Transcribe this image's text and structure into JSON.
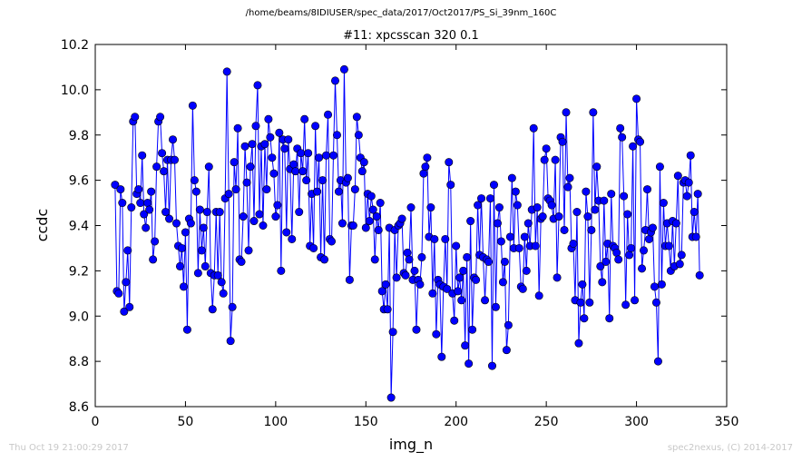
{
  "header": {
    "suptitle": "/home/beams/8IDIUSER/spec_data/2017/Oct2017/PS_Si_39nm_160C"
  },
  "footer": {
    "timestamp": "Thu Oct 19 21:00:29 2017",
    "credit": "spec2nexus, (C) 2014-2017"
  },
  "chart_data": {
    "type": "line",
    "title": "#11: xpcsscan 320 0.1",
    "xlabel": "img_n",
    "ylabel": "ccdc",
    "xlim": [
      0,
      350
    ],
    "ylim": [
      8.6,
      10.2
    ],
    "xticks": [
      "0",
      "50",
      "100",
      "150",
      "200",
      "250",
      "300",
      "350"
    ],
    "yticks": [
      "8.6",
      "8.8",
      "9.0",
      "9.2",
      "9.4",
      "9.6",
      "9.8",
      "10.0",
      "10.2"
    ],
    "grid": false,
    "legend": "none",
    "series_color": "#0000ff",
    "series": [
      {
        "x_start": 11,
        "x_step": 1,
        "values": [
          9.58,
          9.11,
          9.1,
          9.56,
          9.5,
          9.02,
          9.15,
          9.29,
          9.04,
          9.48,
          9.86,
          9.88,
          9.54,
          9.56,
          9.5,
          9.71,
          9.45,
          9.39,
          9.5,
          9.47,
          9.55,
          9.25,
          9.33,
          9.66,
          9.86,
          9.88,
          9.72,
          9.64,
          9.46,
          9.69,
          9.43,
          9.69,
          9.78,
          9.69,
          9.41,
          9.31,
          9.22,
          9.3,
          9.13,
          9.37,
          8.94,
          9.43,
          9.41,
          9.93,
          9.6,
          9.55,
          9.19,
          9.47,
          9.29,
          9.39,
          9.22,
          9.46,
          9.66,
          9.19,
          9.03,
          9.18,
          9.46,
          9.18,
          9.46,
          9.15,
          9.1,
          9.52,
          10.08,
          9.54,
          8.89,
          9.04,
          9.68,
          9.56,
          9.83,
          9.25,
          9.24,
          9.44,
          9.75,
          9.59,
          9.29,
          9.66,
          9.76,
          9.42,
          9.84,
          10.02,
          9.45,
          9.75,
          9.4,
          9.76,
          9.56,
          9.87,
          9.79,
          9.7,
          9.63,
          9.44,
          9.49,
          9.81,
          9.2,
          9.78,
          9.74,
          9.37,
          9.78,
          9.65,
          9.34,
          9.67,
          9.64,
          9.74,
          9.46,
          9.72,
          9.64,
          9.87,
          9.6,
          9.72,
          9.31,
          9.54,
          9.3,
          9.84,
          9.55,
          9.7,
          9.26,
          9.6,
          9.25,
          9.71,
          9.89,
          9.34,
          9.33,
          9.71,
          10.04,
          9.8,
          9.55,
          9.6,
          9.41,
          10.09,
          9.59,
          9.61,
          9.16,
          9.4,
          9.4,
          9.56,
          9.88,
          9.8,
          9.7,
          9.64,
          9.68,
          9.39,
          9.54,
          9.42,
          9.53,
          9.47,
          9.25,
          9.44,
          9.38,
          9.5,
          9.11,
          9.03,
          9.14,
          9.03,
          9.39,
          8.64,
          8.93,
          9.38,
          9.17,
          9.4,
          9.41,
          9.43,
          9.19,
          9.18,
          9.28,
          9.25,
          9.48,
          9.16,
          9.2,
          8.94,
          9.16,
          9.14,
          9.26,
          9.63,
          9.66,
          9.7,
          9.35,
          9.48,
          9.1,
          9.34,
          8.92,
          9.16,
          9.14,
          8.82,
          9.13,
          9.34,
          9.12,
          9.68,
          9.58,
          9.1,
          8.98,
          9.31,
          9.11,
          9.17,
          9.07,
          9.2,
          8.87,
          9.26,
          8.79,
          9.42,
          8.94,
          9.17,
          9.16,
          9.49,
          9.27,
          9.52,
          9.26,
          9.07,
          9.25,
          9.24,
          9.52,
          8.78,
          9.58,
          9.04,
          9.41,
          9.48,
          9.33,
          9.15,
          9.24,
          8.85,
          8.96,
          9.35,
          9.61,
          9.3,
          9.55,
          9.49,
          9.3,
          9.13,
          9.12,
          9.35,
          9.2,
          9.41,
          9.31,
          9.47,
          9.83,
          9.31,
          9.48,
          9.09,
          9.43,
          9.44,
          9.69,
          9.74,
          9.52,
          9.51,
          9.49,
          9.43,
          9.69,
          9.17,
          9.44,
          9.79,
          9.77,
          9.38,
          9.9,
          9.57,
          9.61,
          9.3,
          9.32,
          9.07,
          9.46,
          8.88,
          9.06,
          9.14,
          8.99,
          9.55,
          9.44,
          9.06,
          9.38,
          9.9,
          9.47,
          9.66,
          9.51,
          9.22,
          9.15,
          9.51,
          9.24,
          9.32,
          8.99,
          9.54,
          9.31,
          9.3,
          9.28,
          9.25,
          9.83,
          9.79,
          9.53,
          9.05,
          9.45,
          9.27,
          9.3,
          9.75,
          9.07,
          9.96,
          9.78,
          9.77,
          9.21,
          9.29,
          9.38,
          9.56,
          9.34,
          9.37,
          9.39,
          9.13,
          9.06,
          8.8,
          9.66,
          9.14,
          9.5,
          9.31,
          9.41,
          9.31,
          9.2,
          9.42,
          9.22,
          9.41,
          9.62,
          9.23,
          9.27,
          9.59,
          9.6,
          9.53,
          9.59,
          9.71,
          9.35,
          9.46,
          9.35,
          9.54,
          9.18
        ]
      }
    ]
  }
}
